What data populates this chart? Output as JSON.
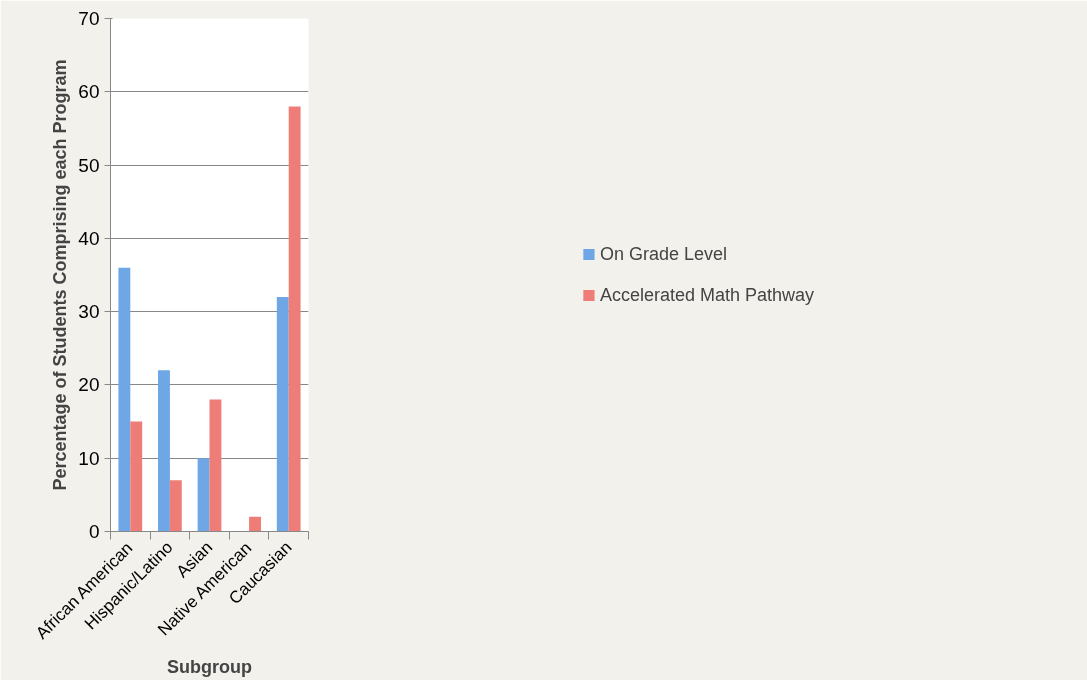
{
  "chart_data": {
    "type": "bar",
    "xlabel": "Subgroup",
    "ylabel": "Percentage of Students Comprising each Program",
    "categories": [
      "African American",
      "Hispanic/Latino",
      "Asian",
      "Native American",
      "Caucasian"
    ],
    "series": [
      {
        "name": "On Grade Level",
        "color": "#6ea6e6",
        "values": [
          36,
          22,
          10,
          0,
          32
        ]
      },
      {
        "name": "Accelerated Math Pathway",
        "color": "#ee7d78",
        "values": [
          15,
          7,
          18,
          2,
          58
        ]
      }
    ],
    "ylim": [
      0,
      70
    ],
    "yticks": [
      0,
      10,
      20,
      30,
      40,
      50,
      60,
      70
    ],
    "grid": "y",
    "legend": "right"
  }
}
